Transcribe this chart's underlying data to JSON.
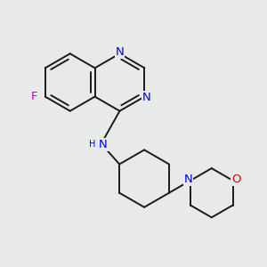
{
  "bg_color": "#e8eaea",
  "bond_color": "#1a1a1a",
  "bond_width": 1.4,
  "atom_colors": {
    "N": "#0000ee",
    "F": "#cc00cc",
    "O": "#dd0000",
    "C": "#1a1a1a"
  },
  "font_size": 8.5,
  "fig_size": [
    3.0,
    3.0
  ],
  "dpi": 100
}
